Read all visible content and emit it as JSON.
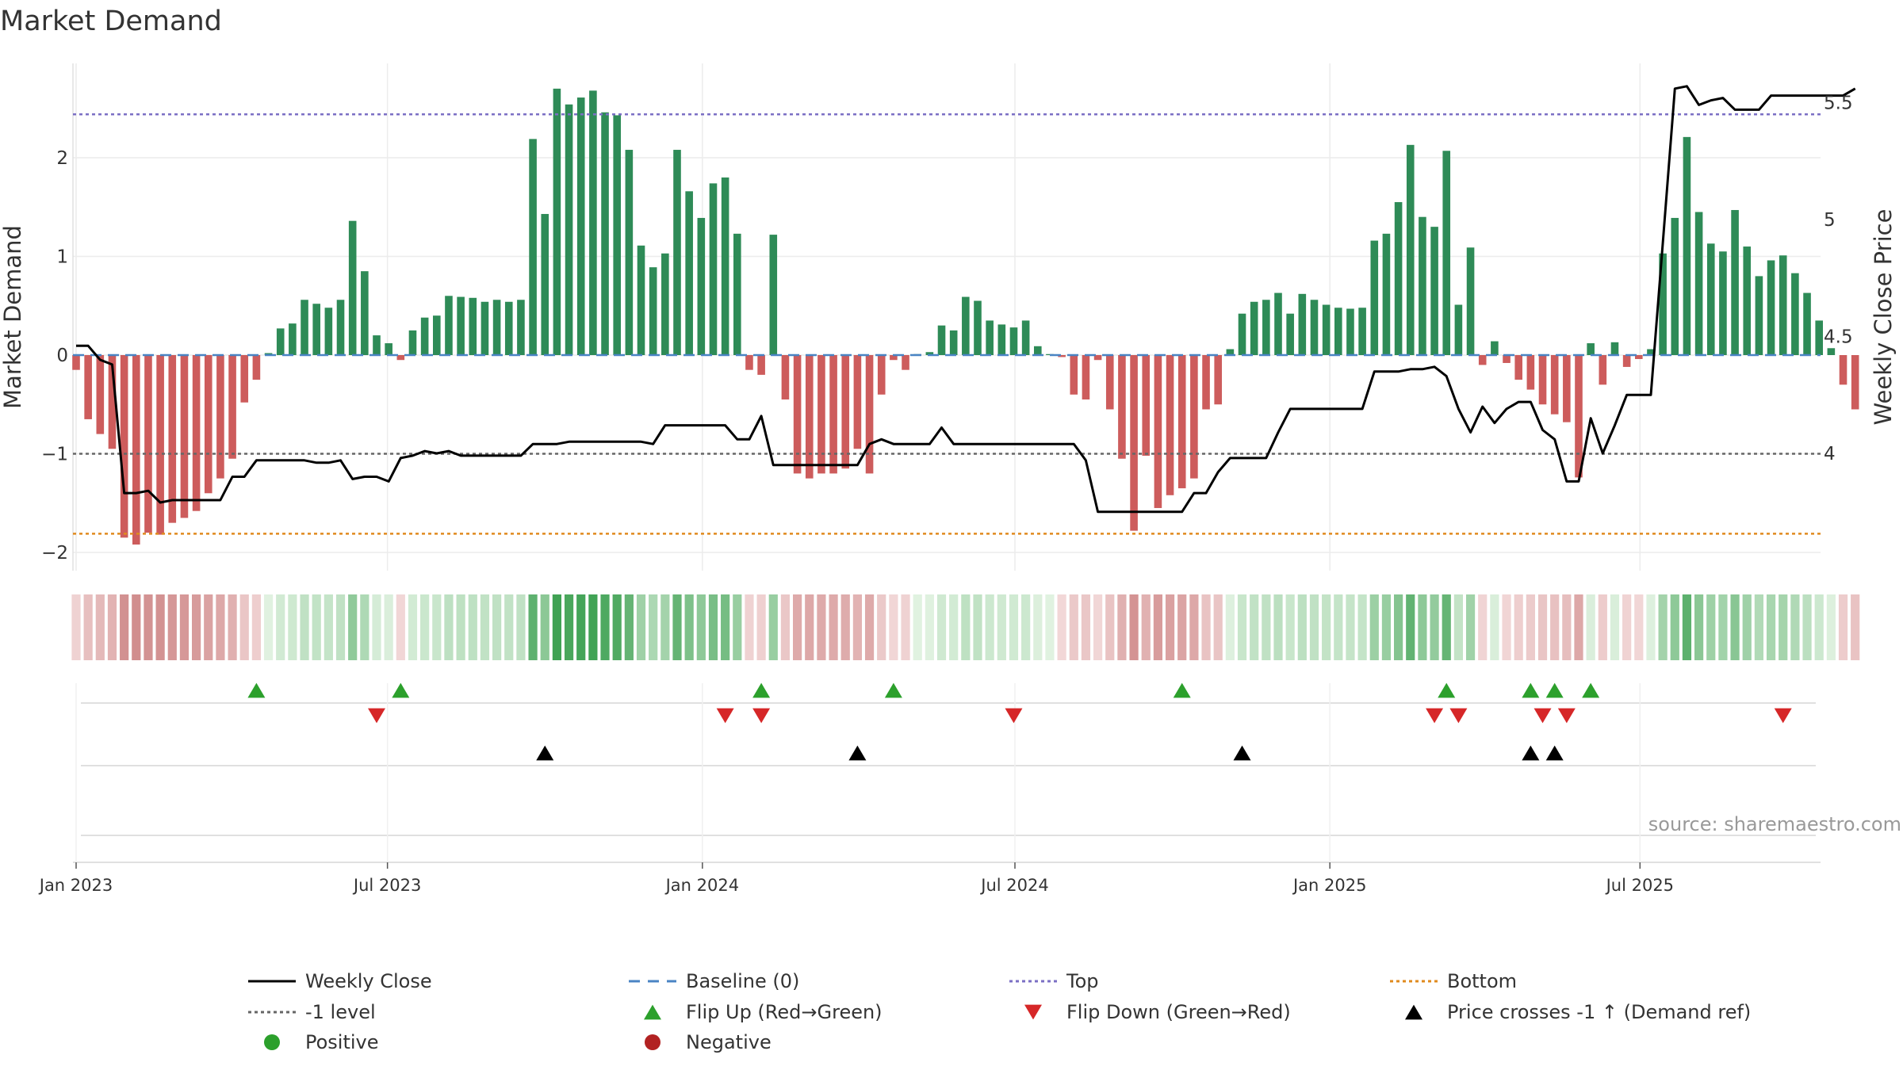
{
  "chart_data": {
    "type": "bar",
    "title": "Market Demand",
    "ylabel": "Market Demand",
    "ylabel_right": "Weekly Close Price",
    "source": "source: sharemaestro.com",
    "ylim": [
      -2.1,
      2.92
    ],
    "ylim_right": [
      3.55,
      5.62
    ],
    "yticks": [
      {
        "value": 2,
        "label": "2"
      },
      {
        "value": 1,
        "label": "1"
      },
      {
        "value": 0,
        "label": "0"
      },
      {
        "value": -1,
        "label": "−1"
      },
      {
        "value": -2,
        "label": "−2"
      }
    ],
    "yticks_right": [
      {
        "value": 5.5,
        "label": "5.5"
      },
      {
        "value": 5,
        "label": "5"
      },
      {
        "value": 4.5,
        "label": "4.5"
      },
      {
        "value": 4,
        "label": "4"
      }
    ],
    "xticks": [
      {
        "label": "Jan 2023",
        "week": 0
      },
      {
        "label": "Jul 2023",
        "week": 25.9
      },
      {
        "label": "Jan 2024",
        "week": 52.1
      },
      {
        "label": "Jul 2024",
        "week": 78.1
      },
      {
        "label": "Jan 2025",
        "week": 104.3
      },
      {
        "label": "Jul 2025",
        "week": 130.1
      }
    ],
    "reference_lines": {
      "top": 2.44,
      "bottom": -1.81,
      "minus_one": -1,
      "baseline": 0
    },
    "colors": {
      "positive": "#2e8b57",
      "negative": "#cd5c5c",
      "price": "#000000",
      "top": "#7b6fc4",
      "bottom": "#e08a1e",
      "minus_one": "#666666",
      "baseline": "#4a84c4",
      "flip_up": "#2ca02c",
      "flip_down": "#d62728",
      "cross": "#000000"
    },
    "series": [
      {
        "name": "Market Demand",
        "values": [
          -0.15,
          -0.65,
          -0.8,
          -0.95,
          -1.85,
          -1.92,
          -1.8,
          -1.82,
          -1.7,
          -1.65,
          -1.58,
          -1.4,
          -1.25,
          -1.05,
          -0.48,
          -0.25,
          0.02,
          0.27,
          0.32,
          0.56,
          0.52,
          0.48,
          0.56,
          1.36,
          0.85,
          0.2,
          0.12,
          -0.05,
          0.25,
          0.38,
          0.4,
          0.6,
          0.59,
          0.58,
          0.54,
          0.56,
          0.54,
          0.56,
          2.19,
          1.43,
          2.7,
          2.54,
          2.61,
          2.68,
          2.46,
          2.43,
          2.08,
          1.11,
          0.89,
          1.03,
          2.08,
          1.66,
          1.39,
          1.74,
          1.8,
          1.23,
          -0.15,
          -0.2,
          1.22,
          -0.45,
          -1.2,
          -1.25,
          -1.2,
          -1.2,
          -1.15,
          -0.95,
          -1.2,
          -0.4,
          -0.05,
          -0.15,
          0.01,
          0.03,
          0.3,
          0.25,
          0.59,
          0.55,
          0.35,
          0.31,
          0.28,
          0.35,
          0.09,
          0.01,
          -0.02,
          -0.4,
          -0.45,
          -0.05,
          -0.55,
          -1.05,
          -1.78,
          -1.02,
          -1.55,
          -1.42,
          -1.35,
          -1.25,
          -0.55,
          -0.5,
          0.06,
          0.42,
          0.54,
          0.56,
          0.63,
          0.42,
          0.62,
          0.56,
          0.51,
          0.48,
          0.47,
          0.48,
          1.16,
          1.23,
          1.55,
          2.13,
          1.4,
          1.3,
          2.07,
          0.51,
          1.09,
          -0.1,
          0.14,
          -0.08,
          -0.25,
          -0.35,
          -0.5,
          -0.6,
          -0.68,
          -1.24,
          0.12,
          -0.3,
          0.13,
          -0.12,
          -0.04,
          0.06,
          1.03,
          1.39,
          2.21,
          1.45,
          1.13,
          1.05,
          1.47,
          1.1,
          0.8,
          0.96,
          1.01,
          0.83,
          0.63,
          0.35,
          0.07,
          -0.3,
          -0.55
        ]
      },
      {
        "name": "Weekly Close",
        "axis": "right",
        "values": [
          4.46,
          4.46,
          4.4,
          4.38,
          3.83,
          3.83,
          3.84,
          3.79,
          3.8,
          3.8,
          3.8,
          3.8,
          3.8,
          3.9,
          3.9,
          3.97,
          3.97,
          3.97,
          3.97,
          3.97,
          3.96,
          3.96,
          3.97,
          3.89,
          3.9,
          3.9,
          3.88,
          3.98,
          3.99,
          4.01,
          4.0,
          4.01,
          3.99,
          3.99,
          3.99,
          3.99,
          3.99,
          3.99,
          4.04,
          4.04,
          4.04,
          4.05,
          4.05,
          4.05,
          4.05,
          4.05,
          4.05,
          4.05,
          4.04,
          4.12,
          4.12,
          4.12,
          4.12,
          4.12,
          4.12,
          4.06,
          4.06,
          4.16,
          3.95,
          3.95,
          3.95,
          3.95,
          3.95,
          3.95,
          3.95,
          3.95,
          4.04,
          4.06,
          4.04,
          4.04,
          4.04,
          4.04,
          4.11,
          4.04,
          4.04,
          4.04,
          4.04,
          4.04,
          4.04,
          4.04,
          4.04,
          4.04,
          4.04,
          4.04,
          3.97,
          3.75,
          3.75,
          3.75,
          3.75,
          3.75,
          3.75,
          3.75,
          3.75,
          3.83,
          3.83,
          3.92,
          3.98,
          3.98,
          3.98,
          3.98,
          4.09,
          4.19,
          4.19,
          4.19,
          4.19,
          4.19,
          4.19,
          4.19,
          4.35,
          4.35,
          4.35,
          4.36,
          4.36,
          4.37,
          4.33,
          4.19,
          4.09,
          4.2,
          4.13,
          4.19,
          4.22,
          4.22,
          4.1,
          4.06,
          3.88,
          3.88,
          4.15,
          4.0,
          4.12,
          4.25,
          4.25,
          4.25,
          4.9,
          5.56,
          5.57,
          5.49,
          5.51,
          5.52,
          5.47,
          5.47,
          5.47,
          5.53,
          5.53,
          5.53,
          5.53,
          5.53,
          5.53,
          5.53,
          5.56
        ]
      }
    ],
    "flip_up_weeks": [
      15,
      27,
      57,
      68,
      92,
      114,
      121,
      123,
      126
    ],
    "flip_down_weeks": [
      25,
      54,
      57,
      78,
      113,
      115,
      122,
      124,
      142
    ],
    "price_cross_weeks": [
      39,
      65,
      97,
      121,
      123
    ],
    "legend": [
      {
        "label": "Weekly Close",
        "marker": "solid-line",
        "color": "#000000"
      },
      {
        "label": "Baseline (0)",
        "marker": "dashed-line",
        "color": "#4a84c4"
      },
      {
        "label": "Top",
        "marker": "dotted-line",
        "color": "#7b6fc4"
      },
      {
        "label": "Bottom",
        "marker": "dotted-line",
        "color": "#e08a1e"
      },
      {
        "label": "-1 level",
        "marker": "dotted-line",
        "color": "#666666"
      },
      {
        "label": "Flip Up (Red→Green)",
        "marker": "triangle-up",
        "color": "#2ca02c"
      },
      {
        "label": "Flip Down (Green→Red)",
        "marker": "triangle-down",
        "color": "#d62728"
      },
      {
        "label": "Price crosses -1 ↑ (Demand ref)",
        "marker": "triangle-up",
        "color": "#000000"
      },
      {
        "label": "Positive",
        "marker": "circle",
        "color": "#2ca02c"
      },
      {
        "label": "Negative",
        "marker": "circle",
        "color": "#b22222"
      }
    ]
  }
}
